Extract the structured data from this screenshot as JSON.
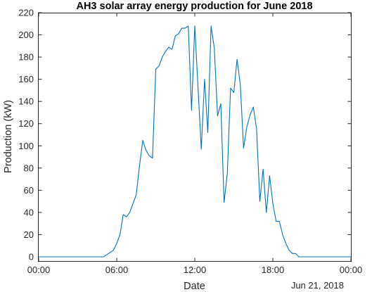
{
  "chart_data": {
    "type": "line",
    "title": "AH3 solar array energy production for June 2018",
    "xlabel": "Date",
    "ylabel": "Production (kW)",
    "date_label": "Jun 21, 2018",
    "xlim": [
      "00:00",
      "24:00"
    ],
    "ylim": [
      0,
      220
    ],
    "x_ticks": [
      "00:00",
      "06:00",
      "12:00",
      "18:00",
      "00:00"
    ],
    "y_ticks": [
      "0",
      "20",
      "40",
      "60",
      "80",
      "100",
      "120",
      "140",
      "160",
      "180",
      "200",
      "220"
    ],
    "grid": false,
    "line_color": "#0072BD",
    "series": [
      {
        "x": [
          "00:00",
          "05:00",
          "05:15",
          "05:30",
          "05:45",
          "06:00",
          "06:15",
          "06:30",
          "06:45",
          "07:00",
          "07:15",
          "07:30",
          "07:45",
          "08:00",
          "08:15",
          "08:30",
          "08:45",
          "09:00",
          "09:15",
          "09:30",
          "09:45",
          "10:00",
          "10:15",
          "10:30",
          "10:45",
          "11:00",
          "11:15",
          "11:30",
          "11:45",
          "12:00",
          "12:15",
          "12:30",
          "12:45",
          "13:00",
          "13:15",
          "13:30",
          "13:45",
          "14:00",
          "14:15",
          "14:30",
          "14:45",
          "15:00",
          "15:15",
          "15:30",
          "15:45",
          "16:00",
          "16:15",
          "16:30",
          "16:45",
          "17:00",
          "17:15",
          "17:30",
          "17:45",
          "18:00",
          "18:15",
          "18:30",
          "18:45",
          "19:00",
          "19:15",
          "19:30",
          "19:45",
          "20:00",
          "20:15",
          "20:30",
          "20:45",
          "21:00",
          "24:00"
        ],
        "y": [
          0,
          0,
          2,
          4,
          6,
          12,
          20,
          38,
          36,
          40,
          48,
          56,
          82,
          105,
          96,
          91,
          89,
          169,
          172,
          180,
          185,
          189,
          187,
          199,
          201,
          206,
          206,
          208,
          132,
          208,
          152,
          97,
          160,
          112,
          208,
          188,
          127,
          138,
          49,
          75,
          152,
          148,
          178,
          155,
          98,
          117,
          128,
          135,
          115,
          50,
          79,
          40,
          73,
          48,
          32,
          32,
          20,
          12,
          6,
          3,
          3,
          0,
          0,
          0,
          0,
          0,
          0
        ]
      }
    ]
  }
}
